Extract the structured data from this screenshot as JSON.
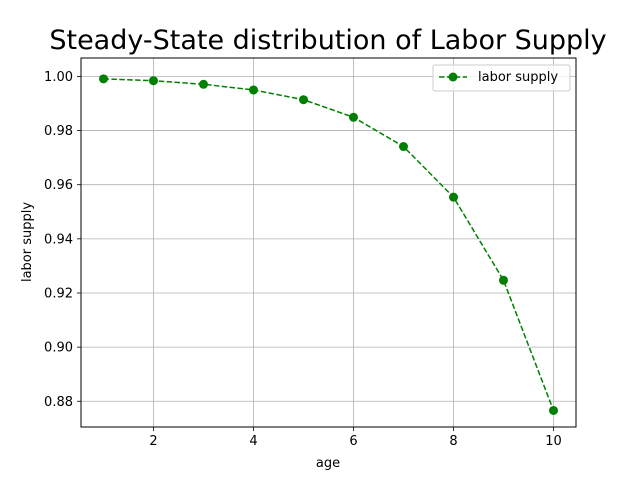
{
  "chart_data": {
    "type": "line",
    "title": "Steady-State distribution of Labor Supply",
    "xlabel": "age",
    "ylabel": "labor supply",
    "xlim": [
      0.55,
      10.45
    ],
    "ylim": [
      0.8705,
      1.0068
    ],
    "x_ticks": [
      2,
      4,
      6,
      8,
      10
    ],
    "y_ticks": [
      0.88,
      0.9,
      0.92,
      0.94,
      0.96,
      0.98,
      1.0
    ],
    "x_tick_labels": [
      "2",
      "4",
      "6",
      "8",
      "10"
    ],
    "y_tick_labels": [
      "0.88",
      "0.90",
      "0.92",
      "0.94",
      "0.96",
      "0.98",
      "1.00"
    ],
    "grid": true,
    "legend_position": "top-right",
    "series": [
      {
        "name": "labor supply",
        "color": "#008000",
        "line_style": "dashed",
        "marker": "circle",
        "x": [
          1,
          2,
          3,
          4,
          5,
          6,
          7,
          8,
          9,
          10
        ],
        "y": [
          0.9991,
          0.9984,
          0.9971,
          0.995,
          0.9914,
          0.9849,
          0.9741,
          0.9554,
          0.9247,
          0.8766
        ]
      }
    ]
  }
}
